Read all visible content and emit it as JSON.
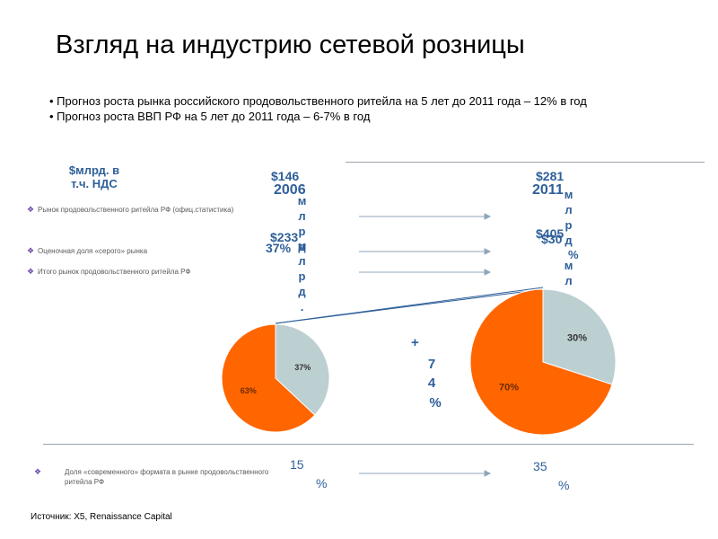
{
  "title": "Взгляд на индустрию сетевой розницы",
  "bullets": [
    "• Прогноз роста рынка российского продовольственного ритейла на 5 лет до 2011 года – 12% в год",
    "• Прогноз роста ВВП РФ на 5 лет до 2011 года – 6-7% в год"
  ],
  "unit_header": "$млрд. в т.ч. НДС",
  "years": {
    "left": "2006",
    "right": "2011"
  },
  "values": {
    "left_top": "$146",
    "left_vertical": "млрд",
    "left_mid": "$233",
    "left_mid_vertical": "млрд.",
    "left_pct": "37%",
    "right_top": "$281",
    "right_vertical": "млрд",
    "right_mid": "$405",
    "right_mid2": "$30",
    "right_mid_vertical": "млрд",
    "right_pct": "%"
  },
  "row_labels": [
    "Рынок продовольственного ритейла РФ (офиц.статистика)",
    "Оценочная доля «серого» рынка",
    "Итого рынок продовольственного ритейла РФ"
  ],
  "growth": {
    "sign": "+",
    "digits": [
      "7",
      "4",
      "%"
    ]
  },
  "modern_label": "Доля «современного» формата в рынке продовольственного ритейла РФ",
  "modern_values": {
    "left_num": "15",
    "left_pct": "%",
    "right_num": "35",
    "right_pct": "%"
  },
  "source": "Источник: X5, Renaissance Capital",
  "colors": {
    "orange": "#ff6600",
    "gray": "#bccfd1",
    "blue": "#2e5f99"
  },
  "chart_data": [
    {
      "type": "pie",
      "title": "",
      "categories": [
        "",
        ""
      ],
      "values": [
        63,
        37
      ],
      "labels": [
        "63%",
        "37%"
      ],
      "colors": [
        "#ff6600",
        "#bccfd1"
      ]
    },
    {
      "type": "pie",
      "title": "",
      "categories": [
        "",
        ""
      ],
      "values": [
        70,
        30
      ],
      "labels": [
        "70%",
        "30%"
      ],
      "colors": [
        "#ff6600",
        "#bccfd1"
      ]
    }
  ]
}
